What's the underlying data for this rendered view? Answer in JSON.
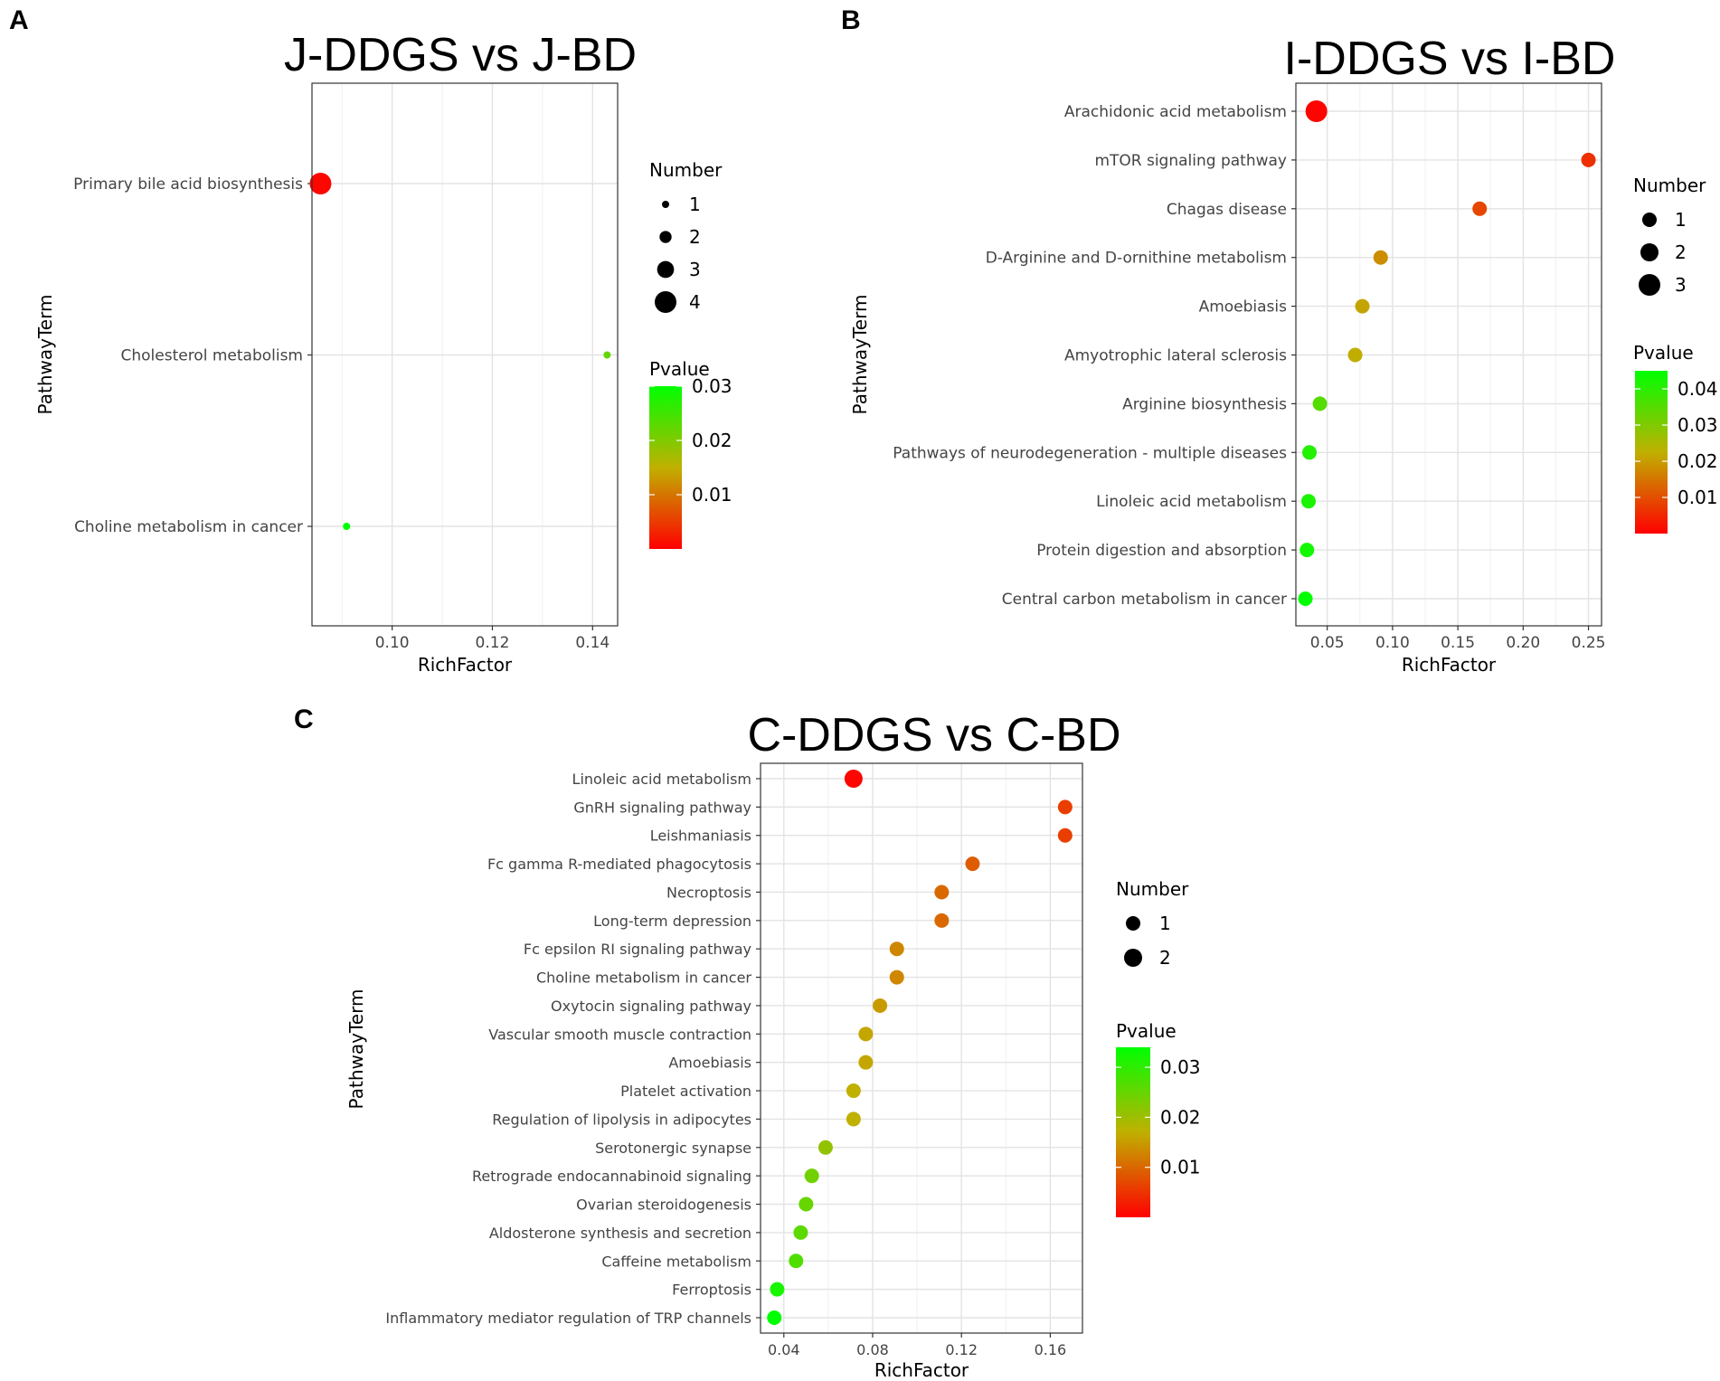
{
  "chart_data": [
    {
      "panel": "A",
      "type": "scatter",
      "title": "J-DDGS vs J-BD",
      "xlabel": "RichFactor",
      "ylabel": "PathwayTerm",
      "xlim": [
        0.084,
        0.145
      ],
      "xticks": [
        0.1,
        0.12,
        0.14
      ],
      "xtick_labels": [
        "0.10",
        "0.12",
        "0.14"
      ],
      "terms": [
        "Primary bile acid biosynthesis",
        "Cholesterol metabolism",
        "Choline metabolism in cancer"
      ],
      "points": [
        {
          "term": "Primary bile acid biosynthesis",
          "x": 0.0857,
          "number": 4,
          "pvalue": 0.0005
        },
        {
          "term": "Cholesterol metabolism",
          "x": 0.1429,
          "number": 1,
          "pvalue": 0.022
        },
        {
          "term": "Choline metabolism in cancer",
          "x": 0.0909,
          "number": 1,
          "pvalue": 0.03
        }
      ],
      "size_legend": {
        "title": "Number",
        "values": [
          1,
          2,
          3,
          4
        ],
        "labels": [
          "1",
          "2",
          "3",
          "4"
        ]
      },
      "color_legend": {
        "title": "Pvalue",
        "min": 0.0,
        "max": 0.03,
        "ticks": [
          0.01,
          0.02,
          0.03
        ],
        "tick_labels": [
          "0.01",
          "0.02",
          "0.03"
        ],
        "low_color": "#ff0000",
        "high_color": "#00ff00"
      }
    },
    {
      "panel": "B",
      "type": "scatter",
      "title": "I-DDGS vs I-BD",
      "xlabel": "RichFactor",
      "ylabel": "PathwayTerm",
      "xlim": [
        0.026,
        0.26
      ],
      "xticks": [
        0.05,
        0.1,
        0.15,
        0.2,
        0.25
      ],
      "xtick_labels": [
        "0.05",
        "0.10",
        "0.15",
        "0.20",
        "0.25"
      ],
      "terms": [
        "Arachidonic acid metabolism",
        "mTOR signaling pathway",
        "Chagas disease",
        "D-Arginine and D-ornithine metabolism",
        "Amoebiasis",
        "Amyotrophic lateral sclerosis",
        "Arginine biosynthesis",
        "Pathways of neurodegeneration - multiple diseases",
        "Linoleic acid metabolism",
        "Protein digestion and absorption",
        "Central carbon metabolism in cancer"
      ],
      "points": [
        {
          "term": "Arachidonic acid metabolism",
          "x": 0.0417,
          "number": 3,
          "pvalue": 0.0005
        },
        {
          "term": "mTOR signaling pathway",
          "x": 0.25,
          "number": 1,
          "pvalue": 0.006
        },
        {
          "term": "Chagas disease",
          "x": 0.1667,
          "number": 1,
          "pvalue": 0.009
        },
        {
          "term": "D-Arginine and D-ornithine metabolism",
          "x": 0.0909,
          "number": 1,
          "pvalue": 0.018
        },
        {
          "term": "Amoebiasis",
          "x": 0.0769,
          "number": 1,
          "pvalue": 0.021
        },
        {
          "term": "Amyotrophic lateral sclerosis",
          "x": 0.0714,
          "number": 1,
          "pvalue": 0.022
        },
        {
          "term": "Arginine biosynthesis",
          "x": 0.0444,
          "number": 1,
          "pvalue": 0.035
        },
        {
          "term": "Pathways of neurodegeneration - multiple diseases",
          "x": 0.0364,
          "number": 1,
          "pvalue": 0.041
        },
        {
          "term": "Linoleic acid metabolism",
          "x": 0.0357,
          "number": 1,
          "pvalue": 0.042
        },
        {
          "term": "Protein digestion and absorption",
          "x": 0.0345,
          "number": 1,
          "pvalue": 0.043
        },
        {
          "term": "Central carbon metabolism in cancer",
          "x": 0.0333,
          "number": 1,
          "pvalue": 0.045
        }
      ],
      "size_legend": {
        "title": "Number",
        "values": [
          1,
          2,
          3
        ],
        "labels": [
          "1",
          "2",
          "3"
        ]
      },
      "color_legend": {
        "title": "Pvalue",
        "min": 0.0,
        "max": 0.045,
        "ticks": [
          0.01,
          0.02,
          0.03,
          0.04
        ],
        "tick_labels": [
          "0.01",
          "0.02",
          "0.03",
          "0.04"
        ],
        "low_color": "#ff0000",
        "high_color": "#00ff00"
      }
    },
    {
      "panel": "C",
      "type": "scatter",
      "title": "C-DDGS vs C-BD",
      "xlabel": "RichFactor",
      "ylabel": "PathwayTerm",
      "xlim": [
        0.0295,
        0.1745
      ],
      "xticks": [
        0.04,
        0.08,
        0.12,
        0.16
      ],
      "xtick_labels": [
        "0.04",
        "0.08",
        "0.12",
        "0.16"
      ],
      "terms": [
        "Linoleic acid metabolism",
        "GnRH signaling pathway",
        "Leishmaniasis",
        "Fc gamma R-mediated phagocytosis",
        "Necroptosis",
        "Long-term depression",
        "Fc epsilon RI signaling pathway",
        "Choline metabolism in cancer",
        "Oxytocin signaling pathway",
        "Vascular smooth muscle contraction",
        "Amoebiasis",
        "Platelet activation",
        "Regulation of lipolysis in adipocytes",
        "Serotonergic synapse",
        "Retrograde endocannabinoid signaling",
        "Ovarian steroidogenesis",
        "Aldosterone synthesis and secretion",
        "Caffeine metabolism",
        "Ferroptosis",
        "Inflammatory mediator regulation of TRP channels"
      ],
      "points": [
        {
          "term": "Linoleic acid metabolism",
          "x": 0.0714,
          "number": 2,
          "pvalue": 0.0005
        },
        {
          "term": "GnRH signaling pathway",
          "x": 0.1667,
          "number": 1,
          "pvalue": 0.006
        },
        {
          "term": "Leishmaniasis",
          "x": 0.1667,
          "number": 1,
          "pvalue": 0.006
        },
        {
          "term": "Fc gamma R-mediated phagocytosis",
          "x": 0.125,
          "number": 1,
          "pvalue": 0.009
        },
        {
          "term": "Necroptosis",
          "x": 0.1111,
          "number": 1,
          "pvalue": 0.01
        },
        {
          "term": "Long-term depression",
          "x": 0.1111,
          "number": 1,
          "pvalue": 0.01
        },
        {
          "term": "Fc epsilon RI signaling pathway",
          "x": 0.0909,
          "number": 1,
          "pvalue": 0.013
        },
        {
          "term": "Choline metabolism in cancer",
          "x": 0.0909,
          "number": 1,
          "pvalue": 0.013
        },
        {
          "term": "Oxytocin signaling pathway",
          "x": 0.0833,
          "number": 1,
          "pvalue": 0.015
        },
        {
          "term": "Vascular smooth muscle contraction",
          "x": 0.0769,
          "number": 1,
          "pvalue": 0.016
        },
        {
          "term": "Amoebiasis",
          "x": 0.0769,
          "number": 1,
          "pvalue": 0.016
        },
        {
          "term": "Platelet activation",
          "x": 0.0714,
          "number": 1,
          "pvalue": 0.017
        },
        {
          "term": "Regulation of lipolysis in adipocytes",
          "x": 0.0714,
          "number": 1,
          "pvalue": 0.017
        },
        {
          "term": "Serotonergic synapse",
          "x": 0.0588,
          "number": 1,
          "pvalue": 0.021
        },
        {
          "term": "Retrograde endocannabinoid signaling",
          "x": 0.0526,
          "number": 1,
          "pvalue": 0.024
        },
        {
          "term": "Ovarian steroidogenesis",
          "x": 0.05,
          "number": 1,
          "pvalue": 0.025
        },
        {
          "term": "Aldosterone synthesis and secretion",
          "x": 0.0476,
          "number": 1,
          "pvalue": 0.026
        },
        {
          "term": "Caffeine metabolism",
          "x": 0.0455,
          "number": 1,
          "pvalue": 0.027
        },
        {
          "term": "Ferroptosis",
          "x": 0.037,
          "number": 1,
          "pvalue": 0.032
        },
        {
          "term": "Inflammatory mediator regulation of TRP channels",
          "x": 0.0357,
          "number": 1,
          "pvalue": 0.034
        }
      ],
      "size_legend": {
        "title": "Number",
        "values": [
          1,
          2
        ],
        "labels": [
          "1",
          "2"
        ]
      },
      "color_legend": {
        "title": "Pvalue",
        "min": 0.0,
        "max": 0.034,
        "ticks": [
          0.01,
          0.02,
          0.03
        ],
        "tick_labels": [
          "0.01",
          "0.02",
          "0.03"
        ],
        "low_color": "#ff0000",
        "high_color": "#00ff00"
      }
    }
  ]
}
